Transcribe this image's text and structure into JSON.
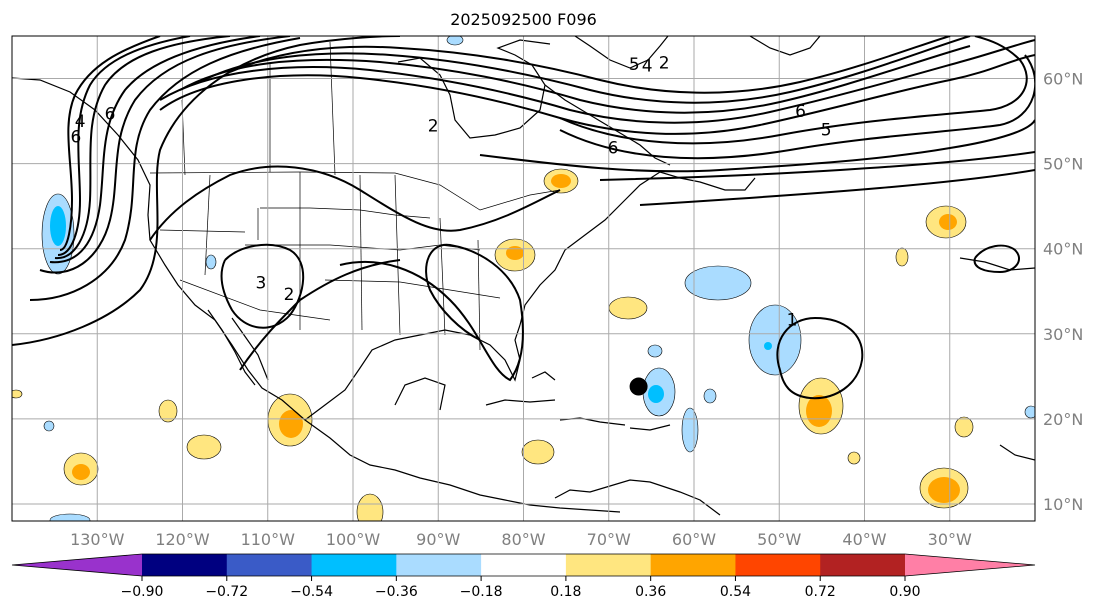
{
  "title": "2025092500 F096",
  "map": {
    "lon_range": [
      -140,
      -20
    ],
    "lat_range": [
      8,
      65
    ],
    "lon_labels": [
      "130°W",
      "120°W",
      "110°W",
      "100°W",
      "90°W",
      "80°W",
      "70°W",
      "60°W",
      "50°W",
      "40°W",
      "30°W"
    ],
    "lon_values": [
      -130,
      -120,
      -110,
      -100,
      -90,
      -80,
      -70,
      -60,
      -50,
      -40,
      -30
    ],
    "lat_labels": [
      "10°N",
      "20°N",
      "30°N",
      "40°N",
      "50°N",
      "60°N"
    ],
    "lat_values": [
      10,
      20,
      30,
      40,
      50,
      60
    ],
    "storm_marker": {
      "lon": -66.5,
      "lat": 23.8
    },
    "contour_labels": [
      {
        "text": "6",
        "lon": -132.5,
        "lat": 52.5
      },
      {
        "text": "4",
        "lon": -132,
        "lat": 54.3
      },
      {
        "text": "6",
        "lon": -128.5,
        "lat": 55.2
      },
      {
        "text": "2",
        "lon": -90.6,
        "lat": 53.8
      },
      {
        "text": "6",
        "lon": -69.5,
        "lat": 51.2
      },
      {
        "text": "5",
        "lon": -67,
        "lat": 61
      },
      {
        "text": "4",
        "lon": -65.5,
        "lat": 60.8
      },
      {
        "text": "2",
        "lon": -63.5,
        "lat": 61.2
      },
      {
        "text": "6",
        "lon": -47.5,
        "lat": 55.5
      },
      {
        "text": "5",
        "lon": -44.5,
        "lat": 53.3
      },
      {
        "text": "3",
        "lon": -110.8,
        "lat": 35.3
      },
      {
        "text": "2",
        "lon": -107.5,
        "lat": 34
      },
      {
        "text": "1",
        "lon": -48.5,
        "lat": 31
      }
    ]
  },
  "colorbar": {
    "colors": [
      "#9932cc",
      "#000080",
      "#3a5bc7",
      "#00bfff",
      "#aadcff",
      "#ffffff",
      "#ffe680",
      "#ffa500",
      "#ff4500",
      "#b22222",
      "#ff7fa6"
    ],
    "tick_labels": [
      "−0.90",
      "−0.72",
      "−0.54",
      "−0.36",
      "−0.18",
      "0.18",
      "0.36",
      "0.54",
      "0.72",
      "0.90"
    ]
  },
  "fills": {
    "yellow": "#ffe680",
    "orange": "#ffa500",
    "lightblue": "#aadcff",
    "blue": "#00bfff"
  }
}
